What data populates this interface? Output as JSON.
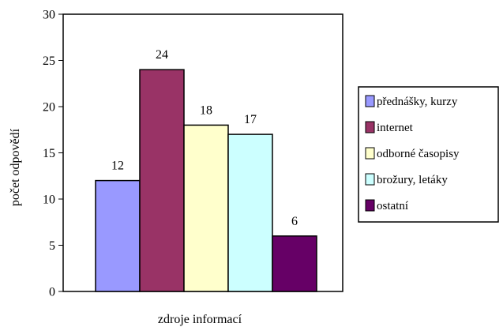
{
  "chart_data": {
    "type": "bar",
    "title": "",
    "xlabel": "zdroje informací",
    "ylabel": "počet odpovědí",
    "ylim": [
      0,
      30
    ],
    "yticks": [
      0,
      5,
      10,
      15,
      20,
      25,
      30
    ],
    "grid": false,
    "legend_position": "right",
    "series": [
      {
        "name": "přednášky, kurzy",
        "value": 12,
        "color": "#9999FF"
      },
      {
        "name": "internet",
        "value": 24,
        "color": "#993366"
      },
      {
        "name": "odborné časopisy",
        "value": 18,
        "color": "#FFFFCC"
      },
      {
        "name": "brožury, letáky",
        "value": 17,
        "color": "#CCFFFF"
      },
      {
        "name": "ostatní",
        "value": 6,
        "color": "#660066"
      }
    ]
  }
}
